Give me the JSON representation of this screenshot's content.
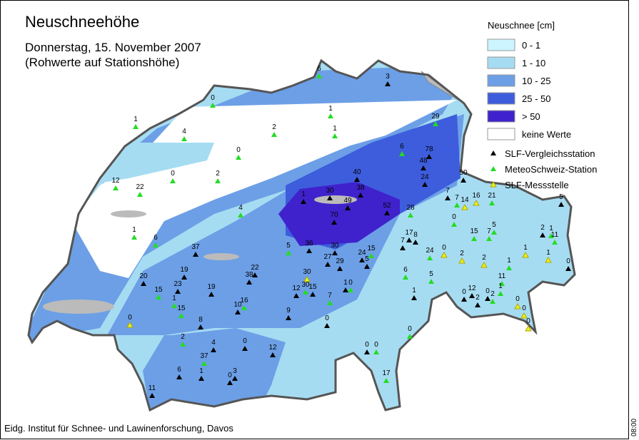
{
  "header": {
    "title": "Neuschneehöhe",
    "subtitle": [
      "Donnerstag, 15. November 2007",
      "(Rohwerte auf Stationshöhe)"
    ]
  },
  "legend": {
    "title": "Neuschnee [cm]",
    "classes": [
      {
        "label": "0 - 1",
        "color": "#ccf5ff"
      },
      {
        "label": "1 - 10",
        "color": "#a6dcf2"
      },
      {
        "label": "10 - 25",
        "color": "#6c9fe6"
      },
      {
        "label": "25 - 50",
        "color": "#3d5ddc"
      },
      {
        "label": "> 50",
        "color": "#3f22cc"
      },
      {
        "label": "keine Werte",
        "color": "#ffffff"
      }
    ],
    "stations": [
      {
        "label": "SLF-Vergleichsstation",
        "color": "#000000"
      },
      {
        "label": "MeteoSchweiz-Station",
        "color": "#22dd22"
      },
      {
        "label": "SLF-Messstelle",
        "color": "#f0f020"
      }
    ]
  },
  "stations": [
    6,
    3,
    0,
    1,
    1,
    4,
    2,
    1,
    29,
    0,
    6,
    78,
    48,
    0,
    2,
    40,
    24,
    50,
    12,
    22,
    30,
    38,
    1,
    49,
    4,
    52,
    28,
    7,
    7,
    14,
    16,
    21,
    5,
    70,
    0,
    1,
    6,
    17,
    8,
    15,
    7,
    5,
    2,
    1,
    11,
    37,
    5,
    36,
    30,
    7,
    0,
    1,
    15,
    24,
    5,
    24,
    2,
    2,
    27,
    29,
    1,
    19,
    22,
    38,
    20,
    30,
    1,
    6,
    5,
    0,
    11,
    23,
    19,
    15,
    30,
    12,
    1,
    0,
    1,
    15,
    1,
    0,
    12,
    2,
    2,
    0,
    1,
    15,
    16,
    10,
    7,
    0,
    0,
    9,
    0,
    8,
    0,
    0,
    2,
    0,
    4,
    0,
    0,
    0,
    12,
    37,
    6,
    1,
    3,
    0,
    17,
    11
  ],
  "footer": "Eidg. Institut für Schnee- und Lawinenforschung, Davos",
  "time": "08:00"
}
